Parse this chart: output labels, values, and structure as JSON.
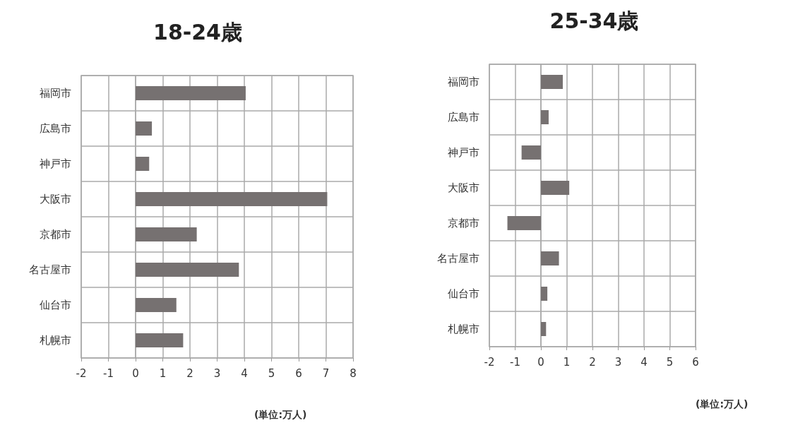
{
  "chart_data": [
    {
      "type": "bar",
      "orientation": "horizontal",
      "title": "18-24歳",
      "categories": [
        "福岡市",
        "広島市",
        "神戸市",
        "大阪市",
        "京都市",
        "名古屋市",
        "仙台市",
        "札幌市"
      ],
      "values": [
        4.05,
        0.6,
        0.5,
        7.05,
        2.25,
        3.8,
        1.5,
        1.75
      ],
      "color": "#767171",
      "xlim": [
        -2,
        8
      ],
      "xticks": [
        -2,
        -1,
        0,
        1,
        2,
        3,
        4,
        5,
        6,
        7,
        8
      ],
      "grid": true,
      "annotations": [
        "(単位:万人)"
      ]
    },
    {
      "type": "bar",
      "orientation": "horizontal",
      "title": "25-34歳",
      "categories": [
        "福岡市",
        "広島市",
        "神戸市",
        "大阪市",
        "京都市",
        "名古屋市",
        "仙台市",
        "札幌市"
      ],
      "values": [
        0.85,
        0.3,
        -0.75,
        1.1,
        -1.3,
        0.7,
        0.25,
        0.2
      ],
      "color": "#767171",
      "xlim": [
        -2,
        6
      ],
      "xticks": [
        -2,
        -1,
        0,
        1,
        2,
        3,
        4,
        5,
        6
      ],
      "grid": true,
      "annotations": [
        "(単位:万人)"
      ]
    }
  ]
}
